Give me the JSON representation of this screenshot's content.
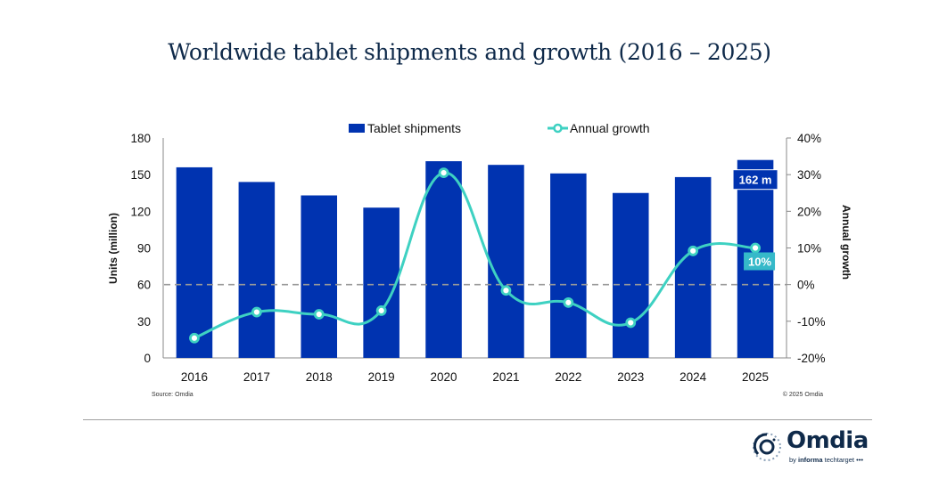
{
  "chart_data": {
    "type": "bar",
    "title": "Worldwide tablet shipments and growth (2016 – 2025)",
    "categories": [
      "2016",
      "2017",
      "2018",
      "2019",
      "2020",
      "2021",
      "2022",
      "2023",
      "2024",
      "2025"
    ],
    "series": [
      {
        "name": "Tablet shipments",
        "type": "bar",
        "axis": "left",
        "color": "#0033b0",
        "values": [
          156,
          144,
          133,
          123,
          161,
          158,
          151,
          135,
          148,
          162
        ]
      },
      {
        "name": "Annual growth",
        "type": "line",
        "axis": "right",
        "color": "#3ed1c2",
        "unit": "%",
        "values": [
          -14.6,
          -7.5,
          -8.1,
          -7.1,
          30.5,
          -1.6,
          -4.9,
          -10.4,
          9.2,
          10
        ]
      }
    ],
    "ylabel": "Units (million)",
    "ylim": [
      0,
      180
    ],
    "yticks": [
      "0",
      "30",
      "60",
      "90",
      "120",
      "150",
      "180"
    ],
    "y2label": "Annual growth",
    "y2lim": [
      -20,
      40
    ],
    "y2ticks": [
      "-20%",
      "-10%",
      "0%",
      "10%",
      "20%",
      "30%",
      "40%"
    ],
    "reference_line": {
      "axis": "right",
      "value": 0,
      "style": "dashed"
    },
    "annotations": [
      {
        "series": "Tablet shipments",
        "category": "2025",
        "text": "162 m"
      },
      {
        "series": "Annual growth",
        "category": "2025",
        "text": "10%"
      }
    ],
    "legend_position": "top-center",
    "grid": false
  },
  "footer": {
    "source": "Source: Omdia",
    "copyright": "© 2025 Omdia"
  },
  "logo": {
    "name": "Omdia",
    "byline_prefix": "by",
    "byline_brand": "informa",
    "byline_suffix": "techtarget"
  },
  "colors": {
    "title": "#0f2a4a",
    "bar": "#0033b0",
    "line": "#3ed1c2",
    "label_bg_line": "#35b9c9"
  }
}
